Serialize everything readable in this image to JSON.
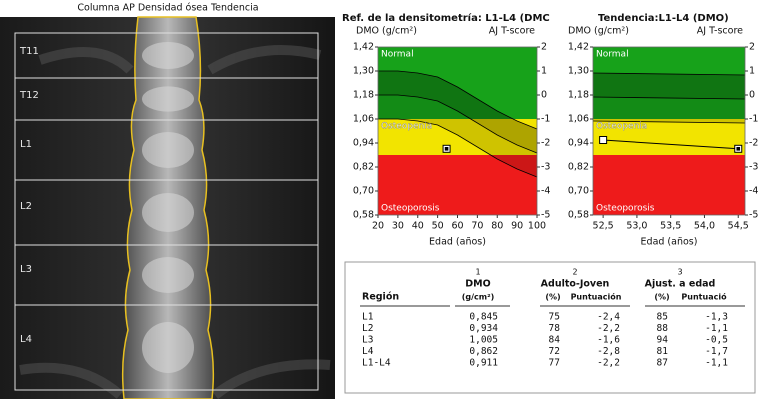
{
  "image": {
    "title": "Columna AP Densidad ósea Tendencia",
    "regions": [
      "T11",
      "T12",
      "L1",
      "L2",
      "L3",
      "L4"
    ]
  },
  "chart_data": [
    {
      "type": "line",
      "title": "Ref. de la densitometría: L1-L4 (DMC",
      "y_label": "DMO (g/cm²)",
      "y2_label": "AJ T-score",
      "x_label": "Edad (años)",
      "xlim": [
        20,
        100
      ],
      "xticks": [
        20,
        30,
        40,
        50,
        60,
        70,
        80,
        90,
        100
      ],
      "ylim": [
        0.58,
        1.42
      ],
      "yticks": [
        {
          "value": 1.42,
          "label": "1,42"
        },
        {
          "value": 1.3,
          "label": "1,30"
        },
        {
          "value": 1.18,
          "label": "1,18"
        },
        {
          "value": 1.06,
          "label": "1,06"
        },
        {
          "value": 0.94,
          "label": "0,94"
        },
        {
          "value": 0.82,
          "label": "0,82"
        },
        {
          "value": 0.7,
          "label": "0,70"
        },
        {
          "value": 0.58,
          "label": "0,58"
        }
      ],
      "y2lim": [
        -5,
        2
      ],
      "y2ticks": [
        2,
        1,
        0,
        -1,
        -2,
        -3,
        -4,
        -5
      ],
      "zones": [
        {
          "label": "Normal",
          "from": 1.06,
          "to": 1.42,
          "color": "#17a21a"
        },
        {
          "label": "Osteopenia",
          "from": 0.88,
          "to": 1.06,
          "color": "#f2e400"
        },
        {
          "label": "Osteoporosis",
          "from": 0.58,
          "to": 0.88,
          "color": "#ee1b1b"
        }
      ],
      "x": [
        20,
        30,
        40,
        50,
        60,
        70,
        80,
        90,
        100
      ],
      "series": [
        {
          "color": "#000000",
          "values": [
            1.3,
            1.3,
            1.29,
            1.27,
            1.22,
            1.16,
            1.1,
            1.05,
            1.01
          ]
        },
        {
          "color": "#000000",
          "values": [
            1.18,
            1.18,
            1.17,
            1.15,
            1.1,
            1.04,
            0.98,
            0.93,
            0.89
          ]
        },
        {
          "color": "#000000",
          "values": [
            1.06,
            1.06,
            1.05,
            1.03,
            0.98,
            0.92,
            0.86,
            0.81,
            0.77
          ]
        }
      ],
      "points": {
        "x": [
          54.5
        ],
        "values": [
          0.911
        ]
      }
    },
    {
      "type": "line",
      "title": "Tendencia:L1-L4 (DMO)",
      "y_label": "DMO (g/cm²)",
      "y2_label": "AJ T-score",
      "x_label": "Edad (años)",
      "xlim": [
        52.35,
        54.6
      ],
      "xticks": [
        {
          "value": 52.5,
          "label": "52,5"
        },
        {
          "value": 53.0,
          "label": "53,0"
        },
        {
          "value": 53.5,
          "label": "53,5"
        },
        {
          "value": 54.0,
          "label": "54,0"
        },
        {
          "value": 54.5,
          "label": "54,5"
        }
      ],
      "ylim": [
        0.58,
        1.42
      ],
      "yticks": [
        {
          "value": 1.42,
          "label": "1,42"
        },
        {
          "value": 1.3,
          "label": "1,30"
        },
        {
          "value": 1.18,
          "label": "1,18"
        },
        {
          "value": 1.06,
          "label": "1,06"
        },
        {
          "value": 0.94,
          "label": "0,94"
        },
        {
          "value": 0.82,
          "label": "0,82"
        },
        {
          "value": 0.7,
          "label": "0,70"
        },
        {
          "value": 0.58,
          "label": "0,58"
        }
      ],
      "y2lim": [
        -5,
        2
      ],
      "y2ticks": [
        2,
        1,
        0,
        -1,
        -2,
        -3,
        -4,
        -5
      ],
      "zones": [
        {
          "label": "Normal",
          "from": 1.06,
          "to": 1.42,
          "color": "#17a21a"
        },
        {
          "label": "Osteopenia",
          "from": 0.88,
          "to": 1.06,
          "color": "#f2e400"
        },
        {
          "label": "Osteoporosis",
          "from": 0.58,
          "to": 0.88,
          "color": "#ee1b1b"
        }
      ],
      "x": [
        52.35,
        54.6
      ],
      "series": [
        {
          "color": "#000000",
          "values": [
            1.29,
            1.28
          ]
        },
        {
          "color": "#000000",
          "values": [
            1.17,
            1.16
          ]
        },
        {
          "color": "#000000",
          "values": [
            1.05,
            1.04
          ]
        }
      ],
      "points": {
        "x": [
          52.5,
          54.5
        ],
        "values": [
          0.955,
          0.911
        ]
      }
    }
  ],
  "table": {
    "column_numbers": [
      "1",
      "2",
      "3"
    ],
    "headers": [
      "Región",
      "DMO",
      "Adulto-Joven",
      "Ajust. a edad"
    ],
    "subheaders": [
      "(g/cm²)",
      "(%)",
      "Puntuación",
      "(%)",
      "Puntuació"
    ],
    "rows": [
      [
        "L1",
        "0,845",
        "75",
        "-2,4",
        "85",
        "-1,3"
      ],
      [
        "L2",
        "0,934",
        "78",
        "-2,2",
        "88",
        "-1,1"
      ],
      [
        "L3",
        "1,005",
        "84",
        "-1,6",
        "94",
        "-0,5"
      ],
      [
        "L4",
        "0,862",
        "72",
        "-2,8",
        "81",
        "-1,7"
      ],
      [
        "L1-L4",
        "0,911",
        "77",
        "-2,2",
        "87",
        "-1,1"
      ]
    ]
  }
}
